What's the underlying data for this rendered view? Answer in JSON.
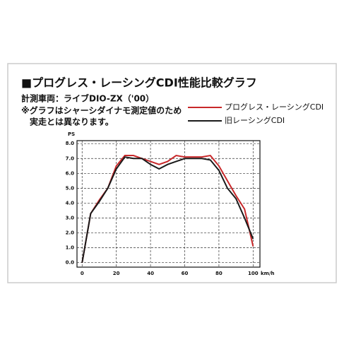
{
  "chart_data": {
    "type": "line",
    "title": "■プログレス・レーシングCDI性能比較グラフ",
    "subtitle": "計測車両：ライブDIO-ZX（'00）",
    "notes": [
      "※グラフはシャーシダイナモ測定値のため",
      "実走とは異なります。"
    ],
    "y_label": "PS",
    "x_label": "km/h",
    "x": [
      0,
      5,
      10,
      15,
      20,
      25,
      30,
      35,
      40,
      45,
      50,
      55,
      60,
      65,
      70,
      75,
      80,
      85,
      90,
      95,
      100
    ],
    "series": [
      {
        "name": "プログレス・レーシングCDI",
        "color": "#c8282a",
        "values": [
          0,
          3.3,
          4.2,
          5.0,
          6.5,
          7.2,
          7.2,
          7.0,
          6.8,
          6.6,
          6.8,
          7.2,
          7.1,
          7.1,
          7.1,
          7.2,
          6.5,
          5.5,
          4.5,
          3.6,
          1.1
        ]
      },
      {
        "name": "旧レーシングCDI",
        "color": "#1a1a1a",
        "values": [
          0,
          3.3,
          4.1,
          5.0,
          6.3,
          7.1,
          7.0,
          7.0,
          6.6,
          6.3,
          6.6,
          6.8,
          7.0,
          7.0,
          7.0,
          6.9,
          6.2,
          5.0,
          4.3,
          3.0,
          1.6
        ]
      }
    ],
    "xlim": [
      -3,
      104
    ],
    "ylim": [
      -0.3,
      8.2
    ],
    "xticks": [
      0,
      20,
      40,
      60,
      80,
      100
    ],
    "yticks": [
      {
        "value": 0,
        "label": "0.0"
      },
      {
        "value": 1,
        "label": "1.0"
      },
      {
        "value": 2,
        "label": "2.0"
      },
      {
        "value": 3,
        "label": "3.0"
      },
      {
        "value": 4,
        "label": "4.0"
      },
      {
        "value": 5,
        "label": "5.0"
      },
      {
        "value": 6,
        "label": "6.0"
      },
      {
        "value": 7,
        "label": "7.0"
      },
      {
        "value": 8,
        "label": "8.0"
      }
    ],
    "grid": true
  }
}
